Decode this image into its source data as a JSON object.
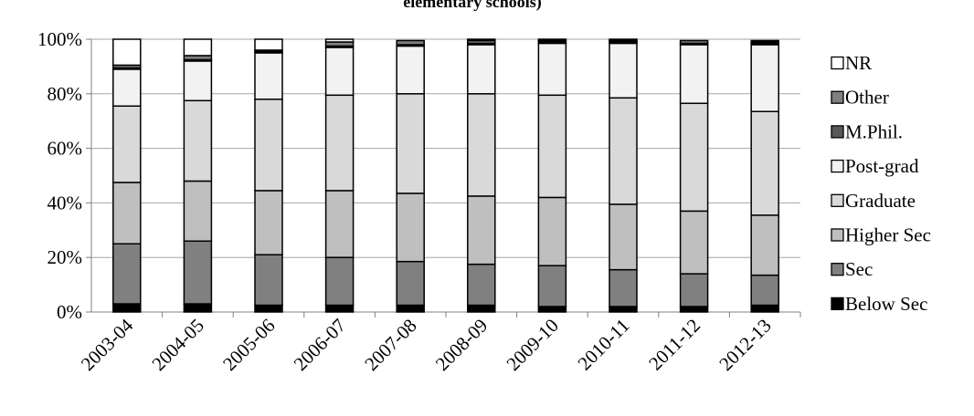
{
  "chart_data": {
    "type": "bar",
    "stacked": true,
    "percent_stacked": true,
    "title": "elementary schools)",
    "xlabel": "",
    "ylabel": "",
    "ylim": [
      0,
      100
    ],
    "y_ticks": [
      "0%",
      "20%",
      "40%",
      "60%",
      "80%",
      "100%"
    ],
    "grid": true,
    "legend_position": "right",
    "categories": [
      "2003-04",
      "2004-05",
      "2005-06",
      "2006-07",
      "2007-08",
      "2008-09",
      "2009-10",
      "2010-11",
      "2011-12",
      "2012-13"
    ],
    "series": [
      {
        "name": "Below Sec",
        "color": "#000000",
        "values": [
          3,
          3,
          2.5,
          2.5,
          2.5,
          2.5,
          2,
          2,
          2,
          2.5
        ]
      },
      {
        "name": "Sec",
        "color": "#808080",
        "values": [
          22,
          23,
          18.5,
          17.5,
          16,
          15,
          15,
          13.5,
          12,
          11
        ]
      },
      {
        "name": "Higher Sec",
        "color": "#bfbfbf",
        "values": [
          22.5,
          22,
          23.5,
          24.5,
          25,
          25,
          25,
          24,
          23,
          22
        ]
      },
      {
        "name": "Graduate",
        "color": "#d9d9d9",
        "values": [
          28,
          29.5,
          33.5,
          35,
          36.5,
          37.5,
          37.5,
          39,
          39.5,
          38
        ]
      },
      {
        "name": "Post-grad",
        "color": "#f2f2f2",
        "values": [
          13.5,
          14.5,
          17,
          17.5,
          17.5,
          18,
          19,
          20,
          21.5,
          24.5
        ]
      },
      {
        "name": "M.Phil.",
        "color": "#595959",
        "values": [
          0.5,
          0.5,
          0.5,
          0.5,
          0.5,
          0.5,
          0.5,
          0.5,
          0.5,
          0.5
        ]
      },
      {
        "name": "Other",
        "color": "#7f7f7f",
        "values": [
          1,
          1.5,
          0.5,
          1.5,
          1.5,
          1,
          0.5,
          0.5,
          1,
          0.5
        ]
      },
      {
        "name": "NR",
        "color": "#ffffff",
        "values": [
          9.5,
          6,
          4,
          1,
          0,
          0.5,
          0.5,
          0.5,
          0,
          0.5
        ]
      }
    ],
    "legend_order": [
      "NR",
      "Other",
      "M.Phil.",
      "Post-grad",
      "Graduate",
      "Higher Sec",
      "Sec",
      "Below Sec"
    ]
  }
}
